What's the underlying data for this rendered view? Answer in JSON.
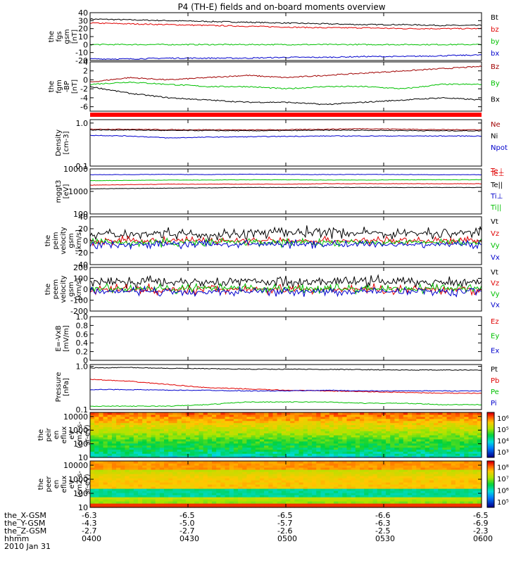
{
  "title": "P4 (TH-E) fields and on-board moments overview",
  "colors": {
    "black": "#000000",
    "red": "#e00000",
    "green": "#00c000",
    "blue": "#0000cc",
    "darkred": "#a00000"
  },
  "chart_data": [
    {
      "type": "line",
      "ylabel_lines": [
        "the",
        "fgs",
        "gsm",
        "[nT]"
      ],
      "ylim": [
        -20,
        40
      ],
      "yticks": [
        -20,
        -10,
        0,
        10,
        20,
        30,
        40
      ],
      "series": [
        {
          "name": "Bt",
          "color": "#000000",
          "values": [
            32,
            31,
            30,
            29,
            28,
            27,
            26,
            25,
            25,
            24,
            24
          ]
        },
        {
          "name": "bz",
          "color": "#e00000",
          "values": [
            27,
            26,
            25,
            24,
            23,
            22,
            21,
            21,
            20,
            20,
            20
          ]
        },
        {
          "name": "by",
          "color": "#00c000",
          "values": [
            0,
            0,
            0,
            0,
            0,
            0,
            0,
            0,
            0,
            0,
            0
          ]
        },
        {
          "name": "bx",
          "color": "#0000cc",
          "values": [
            -18,
            -18,
            -17,
            -17,
            -17,
            -16,
            -16,
            -15,
            -15,
            -14,
            -13
          ]
        }
      ]
    },
    {
      "type": "line",
      "ylabel_lines": [
        "the",
        "fgm",
        "-BP",
        "[nT]"
      ],
      "ylim": [
        -7,
        4
      ],
      "yticks": [
        -6,
        -4,
        -2,
        0,
        2,
        4
      ],
      "series": [
        {
          "name": "Bz",
          "color": "#a00000",
          "values": [
            -0.5,
            0.5,
            0,
            0.5,
            1,
            0.5,
            1,
            1.5,
            2,
            2.5,
            3
          ]
        },
        {
          "name": "By",
          "color": "#00c000",
          "values": [
            -1,
            -0.5,
            -1,
            -1.5,
            -1.5,
            -2,
            -1.5,
            -1.5,
            -2,
            -1,
            -1
          ]
        },
        {
          "name": "Bx",
          "color": "#000000",
          "values": [
            -1.5,
            -3,
            -4,
            -4.5,
            -5,
            -5,
            -5.5,
            -5,
            -4.5,
            -4,
            -4.5
          ]
        }
      ]
    },
    {
      "type": "line",
      "ylabel_lines": [
        "Density",
        "[cm-3]"
      ],
      "log": true,
      "ylim": [
        0.1,
        1.2
      ],
      "yticks": [
        0.1,
        1.0
      ],
      "series": [
        {
          "name": "Ne",
          "color": "#a00000",
          "values": [
            0.72,
            0.72,
            0.7,
            0.7,
            0.69,
            0.7,
            0.72,
            0.74,
            0.72,
            0.7,
            0.7
          ]
        },
        {
          "name": "Ni",
          "color": "#000000",
          "values": [
            0.69,
            0.69,
            0.67,
            0.67,
            0.66,
            0.67,
            0.68,
            0.68,
            0.67,
            0.66,
            0.66
          ]
        },
        {
          "name": "Npot",
          "color": "#0000cc",
          "values": [
            0.52,
            0.5,
            0.45,
            0.47,
            0.48,
            0.49,
            0.5,
            0.5,
            0.5,
            0.5,
            0.5
          ]
        }
      ],
      "marker": "Te⊥"
    },
    {
      "type": "line",
      "ylabel_lines": [
        "mggt3",
        "[eV]"
      ],
      "log": true,
      "ylim": [
        100,
        10000
      ],
      "yticks": [
        100,
        1000,
        10000
      ],
      "series": [
        {
          "name": "Te⊥",
          "color": "#e00000",
          "values": [
            1900,
            2000,
            2100,
            2100,
            2100,
            2100,
            2200,
            2200,
            2200,
            2200,
            2200
          ]
        },
        {
          "name": "Te||",
          "color": "#000000",
          "values": [
            1300,
            1350,
            1400,
            1450,
            1500,
            1500,
            1500,
            1500,
            1500,
            1500,
            1500
          ]
        },
        {
          "name": "Ti⊥",
          "color": "#0000cc",
          "values": [
            5500,
            5600,
            5700,
            5600,
            5800,
            5700,
            5600,
            5700,
            5600,
            5500,
            5500
          ]
        },
        {
          "name": "Ti||",
          "color": "#00c000",
          "values": [
            3000,
            3100,
            3200,
            3200,
            3300,
            3300,
            3200,
            3200,
            3300,
            3300,
            3300
          ]
        }
      ]
    },
    {
      "type": "line",
      "ylabel_lines": [
        "the",
        "peim",
        "velocity",
        "gsm",
        "[km/s]"
      ],
      "ylim": [
        -40,
        40
      ],
      "yticks": [
        -40,
        -20,
        0,
        20,
        40
      ],
      "series": [
        {
          "name": "Vt",
          "color": "#000000",
          "values": [
            10,
            12,
            14,
            10,
            12,
            14,
            15,
            12,
            13,
            12,
            14
          ]
        },
        {
          "name": "Vz",
          "color": "#e00000",
          "values": [
            0,
            0,
            0,
            0,
            0,
            0,
            0,
            0,
            0,
            0,
            0
          ]
        },
        {
          "name": "Vy",
          "color": "#00c000",
          "values": [
            -3,
            -3,
            -3,
            -3,
            -3,
            -3,
            -3,
            -3,
            -3,
            -3,
            -3
          ]
        },
        {
          "name": "Vx",
          "color": "#0000cc",
          "values": [
            -6,
            -6,
            -6,
            -6,
            -6,
            -6,
            -6,
            -6,
            -6,
            -6,
            -6
          ]
        }
      ]
    },
    {
      "type": "line",
      "ylabel_lines": [
        "the",
        "peem",
        "velocity",
        "gsm",
        "[km/s]"
      ],
      "ylim": [
        -200,
        200
      ],
      "yticks": [
        -200,
        -100,
        0,
        100,
        200
      ],
      "series": [
        {
          "name": "Vt",
          "color": "#000000",
          "values": [
            70,
            70,
            70,
            70,
            70,
            70,
            70,
            70,
            70,
            70,
            70
          ]
        },
        {
          "name": "Vz",
          "color": "#e00000",
          "values": [
            0,
            0,
            0,
            0,
            0,
            0,
            0,
            0,
            0,
            0,
            0
          ]
        },
        {
          "name": "Vy",
          "color": "#00c000",
          "values": [
            5,
            5,
            5,
            5,
            5,
            5,
            5,
            5,
            5,
            5,
            5
          ]
        },
        {
          "name": "Vx",
          "color": "#0000cc",
          "values": [
            -20,
            -20,
            -20,
            -20,
            -20,
            -20,
            -20,
            -20,
            -20,
            -20,
            -20
          ]
        }
      ]
    },
    {
      "type": "line",
      "ylabel_lines": [
        "E=-VxB",
        "[mV/m]"
      ],
      "ylim": [
        0,
        1
      ],
      "yticks": [
        0,
        0.2,
        0.4,
        0.6,
        0.8,
        1.0
      ],
      "series": [
        {
          "name": "Ez",
          "color": "#e00000",
          "values": []
        },
        {
          "name": "Ey",
          "color": "#00c000",
          "values": []
        },
        {
          "name": "Ex",
          "color": "#0000cc",
          "values": []
        }
      ]
    },
    {
      "type": "line",
      "ylabel_lines": [
        "Pressure",
        "[nPa]"
      ],
      "log": true,
      "ylim": [
        0.1,
        1.1
      ],
      "yticks": [
        0.1,
        1.0
      ],
      "series": [
        {
          "name": "Pt",
          "color": "#000000",
          "values": [
            0.92,
            0.94,
            0.9,
            0.88,
            0.86,
            0.86,
            0.85,
            0.84,
            0.82,
            0.82,
            0.82
          ]
        },
        {
          "name": "Pb",
          "color": "#e00000",
          "values": [
            0.5,
            0.45,
            0.38,
            0.32,
            0.3,
            0.28,
            0.27,
            0.26,
            0.25,
            0.24,
            0.24
          ]
        },
        {
          "name": "Pe",
          "color": "#00c000",
          "values": [
            0.12,
            0.12,
            0.12,
            0.13,
            0.15,
            0.15,
            0.15,
            0.14,
            0.14,
            0.13,
            0.13
          ]
        },
        {
          "name": "Pi",
          "color": "#0000cc",
          "values": [
            0.29,
            0.29,
            0.28,
            0.28,
            0.27,
            0.27,
            0.28,
            0.27,
            0.27,
            0.27,
            0.27
          ]
        }
      ]
    },
    {
      "type": "heatmap",
      "ylabel_lines": [
        "the",
        "peir",
        "en",
        "eflux",
        "eV",
        "(cm2-s-",
        "sr-eV)"
      ],
      "ylim": [
        10,
        20000
      ],
      "log": true,
      "yticks": [
        10,
        100,
        1000,
        10000
      ],
      "colorbar_ticks": [
        "10³",
        "10⁴",
        "10⁵",
        "10⁶"
      ]
    },
    {
      "type": "heatmap",
      "ylabel_lines": [
        "the",
        "peer",
        "en",
        "eflux",
        "eV",
        "(cm2-s-",
        "sr-eV)"
      ],
      "ylim": [
        10,
        20000
      ],
      "log": true,
      "yticks": [
        10,
        100,
        1000,
        10000
      ],
      "colorbar_ticks": [
        "10⁵",
        "10⁶",
        "10⁷",
        "10⁸"
      ]
    }
  ],
  "x_axis": {
    "rows": [
      {
        "label": "the_X-GSM",
        "values": [
          "-6.3",
          "-6.5",
          "-6.5",
          "-6.6",
          "-6.5"
        ]
      },
      {
        "label": "the_Y-GSM",
        "values": [
          "-4.3",
          "-5.0",
          "-5.7",
          "-6.3",
          "-6.9"
        ]
      },
      {
        "label": "the_Z-GSM",
        "values": [
          "-2.7",
          "-2.7",
          "-2.6",
          "-2.5",
          "-2.3"
        ]
      },
      {
        "label": "hhmm",
        "values": [
          "0400",
          "0430",
          "0500",
          "0530",
          "0600"
        ]
      }
    ],
    "date": "2010 Jan 31"
  }
}
